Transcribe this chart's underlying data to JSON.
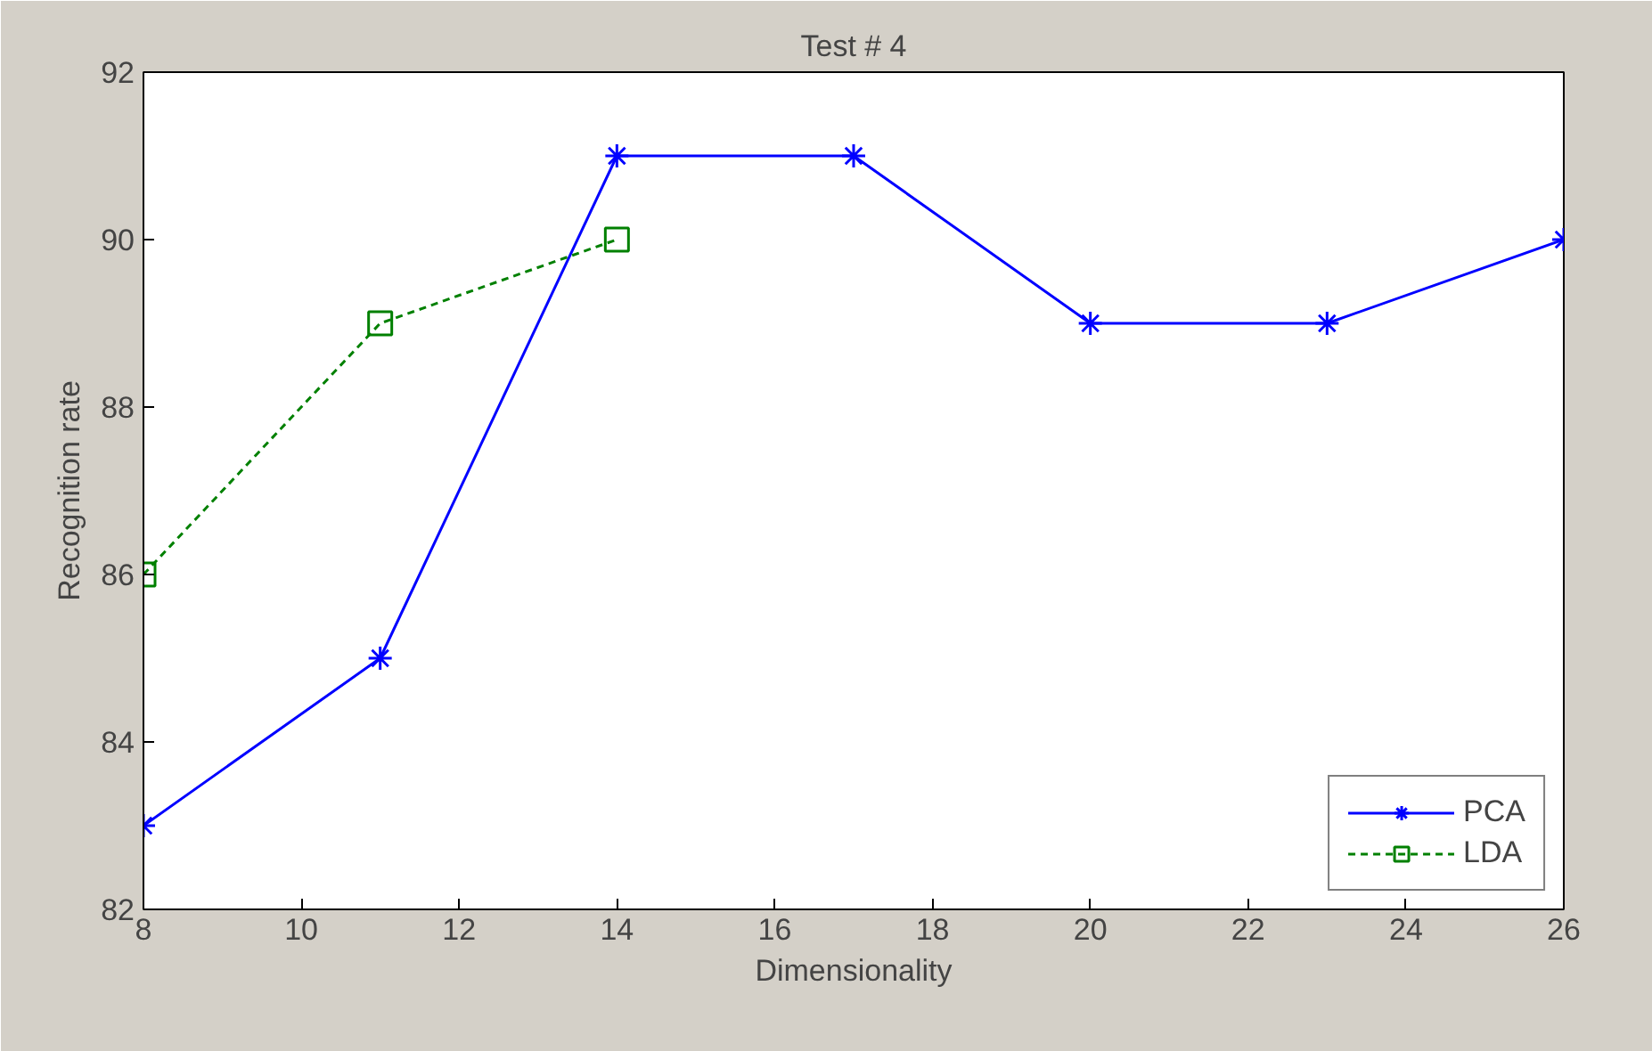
{
  "chart_data": {
    "type": "line",
    "title": "Test # 4",
    "xlabel": "Dimensionality",
    "ylabel": "Recognition rate",
    "xlim": [
      8,
      26
    ],
    "xticks": [
      8,
      10,
      12,
      14,
      16,
      18,
      20,
      22,
      24,
      26
    ],
    "ylim": [
      82,
      92
    ],
    "yticks": [
      82,
      84,
      86,
      88,
      90,
      92
    ],
    "grid": false,
    "legend": "bottom right",
    "series": [
      {
        "name": "PCA",
        "color": "#0000ff",
        "x": [
          8,
          11,
          14,
          17,
          20,
          23,
          26
        ],
        "values": [
          83,
          85,
          91,
          91,
          89,
          89,
          90
        ],
        "marker": "cross",
        "line_style": "solid"
      },
      {
        "name": "LDA",
        "color": "#008000",
        "x": [
          8,
          11,
          14
        ],
        "values": [
          86,
          89,
          90
        ],
        "marker": "square",
        "line_style": "dashed"
      }
    ]
  }
}
